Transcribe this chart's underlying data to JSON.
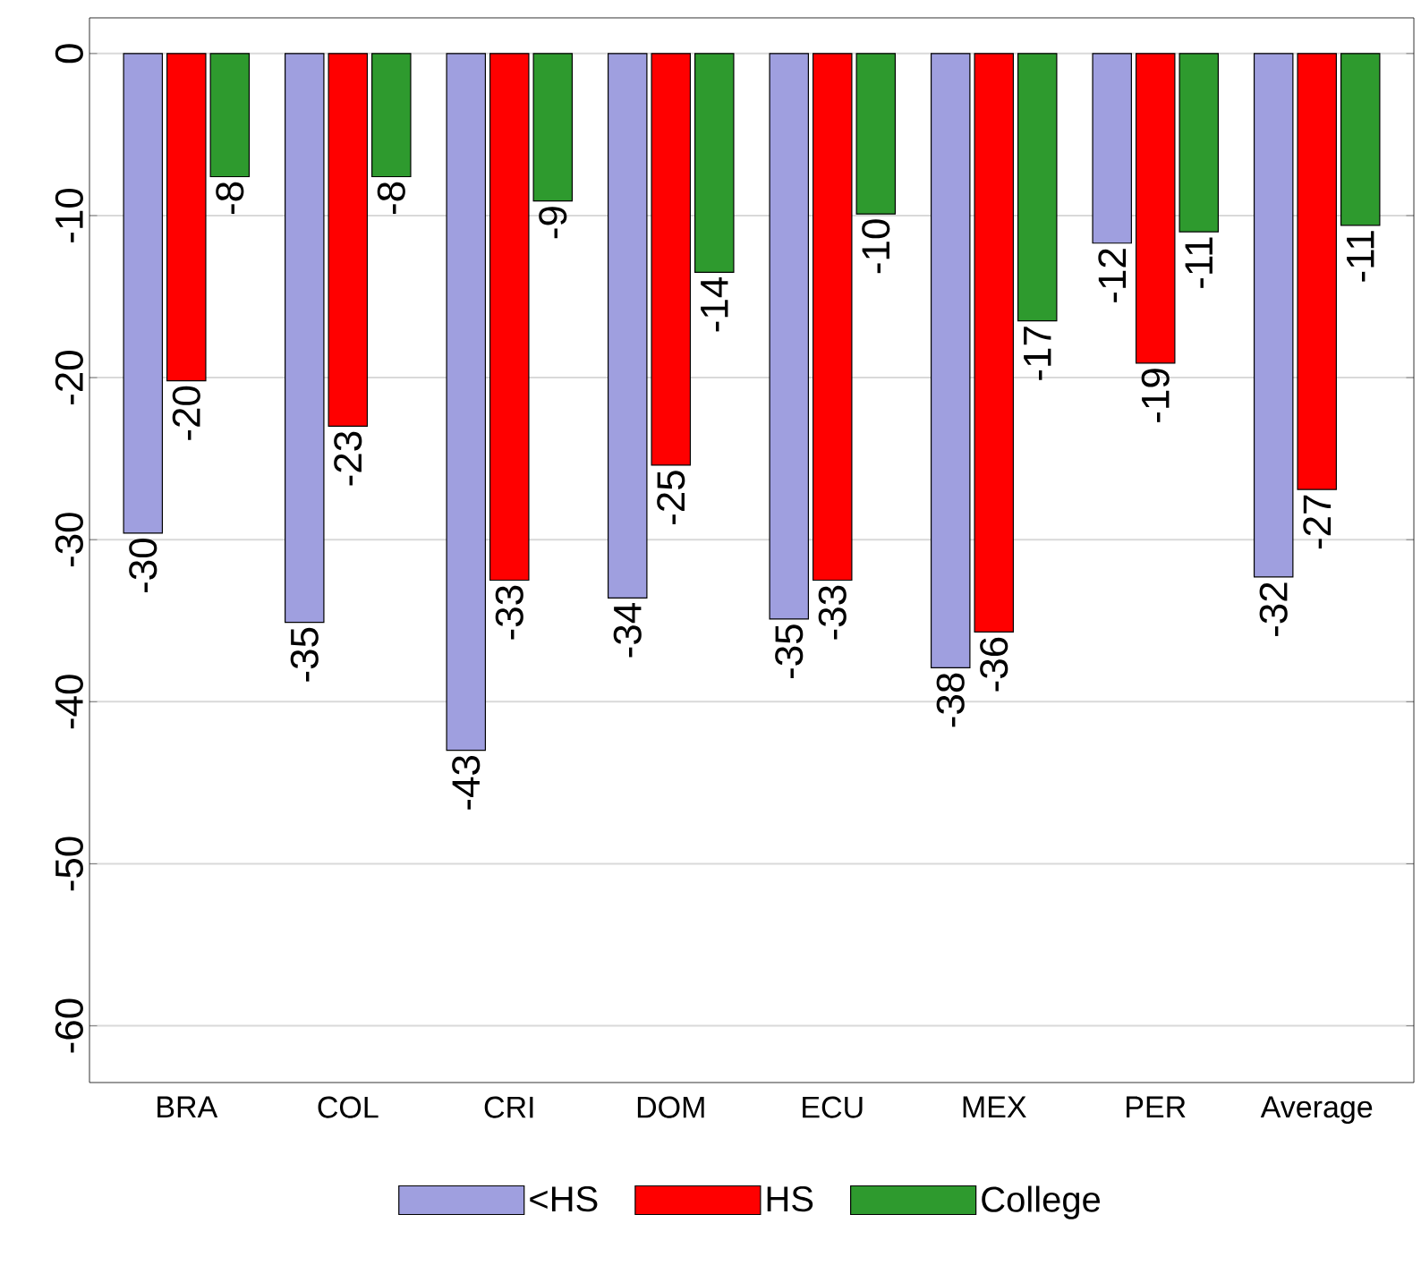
{
  "chart_data": {
    "type": "bar",
    "categories": [
      "BRA",
      "COL",
      "CRI",
      "DOM",
      "ECU",
      "MEX",
      "PER",
      "Average"
    ],
    "series": [
      {
        "name": "<HS",
        "color": "#9f9fdf",
        "values": [
          -29.6,
          -35.1,
          -43.0,
          -33.6,
          -34.9,
          -37.9,
          -11.7,
          -32.3
        ],
        "value_labels": [
          "-30",
          "-35",
          "-43",
          "-34",
          "-35",
          "-38",
          "-12",
          "-32"
        ]
      },
      {
        "name": "HS",
        "color": "#ff0000",
        "values": [
          -20.2,
          -23.0,
          -32.5,
          -25.4,
          -32.5,
          -35.7,
          -19.1,
          -26.9
        ],
        "value_labels": [
          "-20",
          "-23",
          "-33",
          "-25",
          "-33",
          "-36",
          "-19",
          "-27"
        ]
      },
      {
        "name": "College",
        "color": "#2e9a2e",
        "values": [
          -7.6,
          -7.6,
          -9.1,
          -13.5,
          -9.9,
          -16.5,
          -11.0,
          -10.6
        ],
        "value_labels": [
          "-8",
          "-8",
          "-9",
          "-14",
          "-10",
          "-17",
          "-11",
          "-11"
        ]
      }
    ],
    "ylim": [
      -63.5,
      2.2
    ],
    "yticks": [
      0,
      -10,
      -20,
      -30,
      -40,
      -50,
      -60
    ],
    "grid": "y",
    "legend": "bottom"
  }
}
